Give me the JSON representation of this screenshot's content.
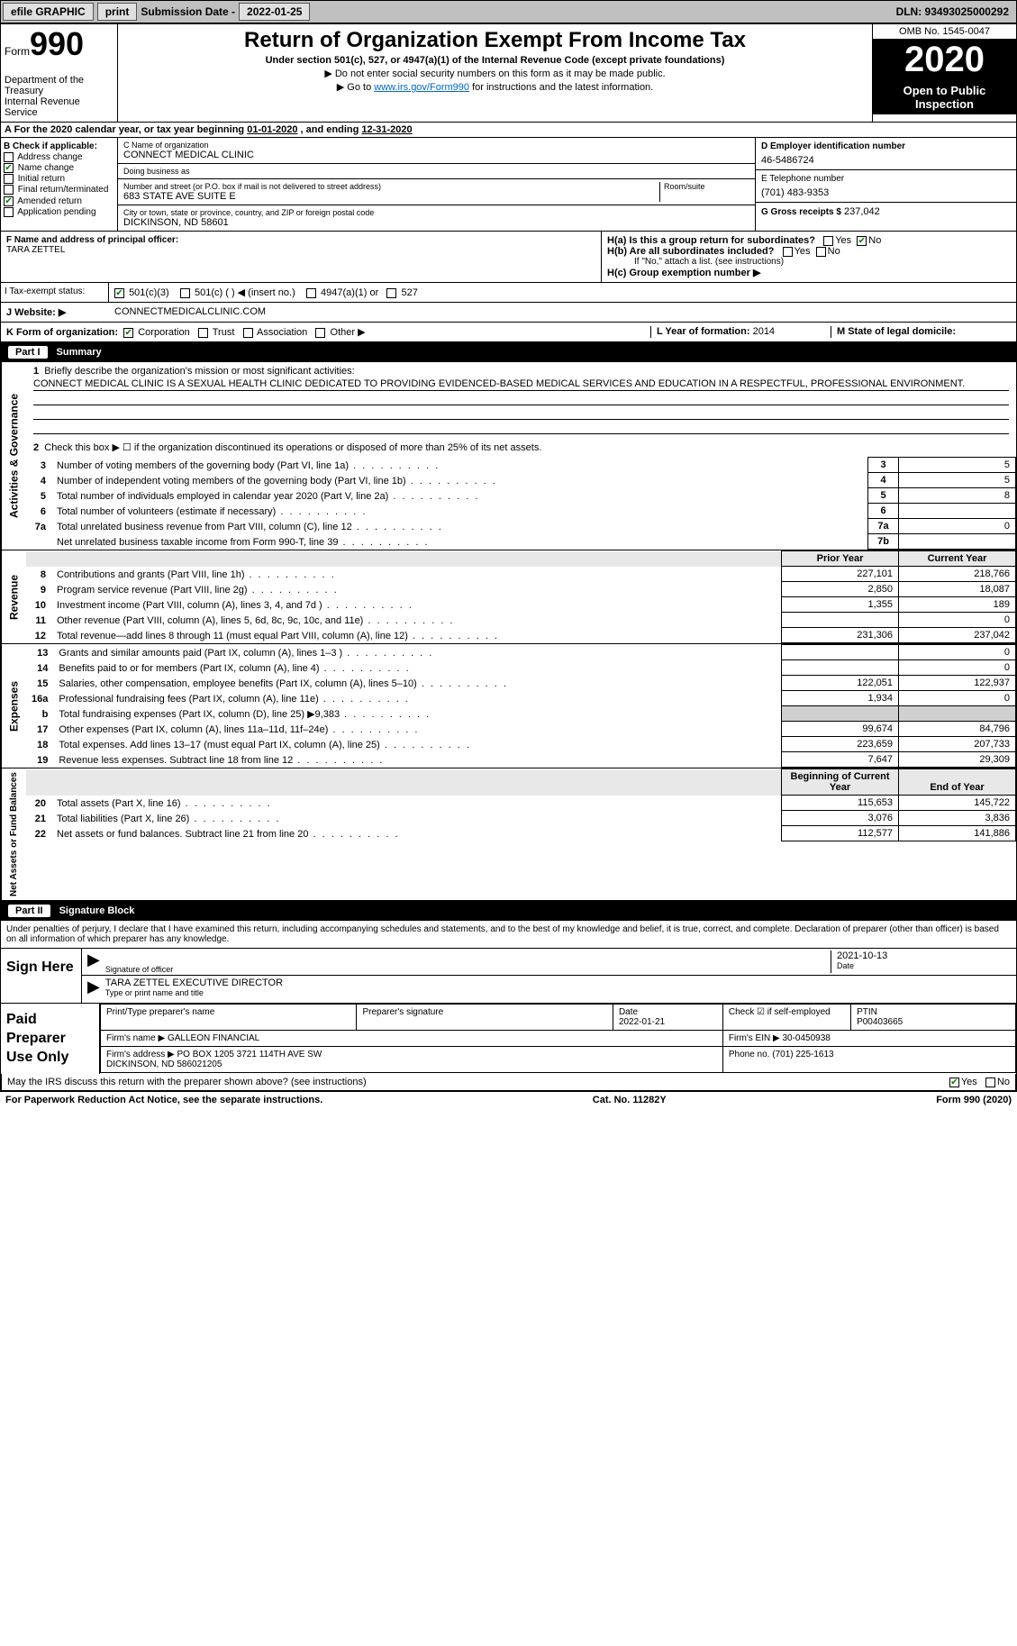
{
  "colors": {
    "link": "#0066cc",
    "checkbox_checked": "#008000",
    "shade": "#d0d0d0",
    "header_bg": "#000000",
    "header_fg": "#ffffff",
    "top_bar_bg": "#c0c0c0"
  },
  "top_bar": {
    "efile": "efile GRAPHIC",
    "print": "print",
    "sub_label": "Submission Date - ",
    "sub_date": "2022-01-25",
    "dln": "DLN: 93493025000292"
  },
  "header": {
    "form_word": "Form",
    "form_num": "990",
    "dept": "Department of the Treasury\nInternal Revenue Service",
    "title": "Return of Organization Exempt From Income Tax",
    "subtitle": "Under section 501(c), 527, or 4947(a)(1) of the Internal Revenue Code (except private foundations)",
    "note1": "▶ Do not enter social security numbers on this form as it may be made public.",
    "note2a": "▶ Go to ",
    "note2_link": "www.irs.gov/Form990",
    "note2b": " for instructions and the latest information.",
    "omb": "OMB No. 1545-0047",
    "year": "2020",
    "open": "Open to Public Inspection"
  },
  "period": {
    "label_a": "A For the 2020 calendar year, or tax year beginning ",
    "begin": "01-01-2020",
    "mid": " , and ending ",
    "end": "12-31-2020"
  },
  "section_b": {
    "header": "B Check if applicable:",
    "items": [
      {
        "label": "Address change",
        "checked": false
      },
      {
        "label": "Name change",
        "checked": true
      },
      {
        "label": "Initial return",
        "checked": false
      },
      {
        "label": "Final return/terminated",
        "checked": false
      },
      {
        "label": "Amended return",
        "checked": true
      },
      {
        "label": "Application pending",
        "checked": false,
        "prefix": true
      }
    ]
  },
  "section_c": {
    "name_lbl": "C Name of organization",
    "name": "CONNECT MEDICAL CLINIC",
    "dba_lbl": "Doing business as",
    "dba": "",
    "addr_lbl": "Number and street (or P.O. box if mail is not delivered to street address)",
    "room_lbl": "Room/suite",
    "addr": "683 STATE AVE SUITE E",
    "city_lbl": "City or town, state or province, country, and ZIP or foreign postal code",
    "city": "DICKINSON, ND  58601"
  },
  "section_d": {
    "lbl": "D Employer identification number",
    "val": "46-5486724"
  },
  "section_e": {
    "lbl": "E Telephone number",
    "val": "(701) 483-9353"
  },
  "section_g": {
    "lbl": "G Gross receipts $",
    "val": "237,042"
  },
  "section_f": {
    "lbl": "F Name and address of principal officer:",
    "val": "TARA ZETTEL"
  },
  "section_h": {
    "a": "H(a)  Is this a group return for subordinates?",
    "a_yes": "Yes",
    "a_no": "No",
    "a_checked": "No",
    "b": "H(b)  Are all subordinates included?",
    "b_yes": "Yes",
    "b_no": "No",
    "b_note": "If \"No,\" attach a list. (see instructions)",
    "c": "H(c)  Group exemption number ▶"
  },
  "section_i": {
    "lbl": "I    Tax-exempt status:",
    "opts": [
      {
        "label": "501(c)(3)",
        "checked": true
      },
      {
        "label": "501(c) (  ) ◀ (insert no.)",
        "checked": false
      },
      {
        "label": "4947(a)(1) or",
        "checked": false
      },
      {
        "label": "527",
        "checked": false
      }
    ]
  },
  "section_j": {
    "lbl": "J    Website: ▶",
    "val": "CONNECTMEDICALCLINIC.COM"
  },
  "section_k": {
    "lbl": "K Form of organization:",
    "opts": [
      {
        "label": "Corporation",
        "checked": true
      },
      {
        "label": "Trust",
        "checked": false
      },
      {
        "label": "Association",
        "checked": false
      },
      {
        "label": "Other ▶",
        "checked": false
      }
    ]
  },
  "section_l": {
    "lbl": "L Year of formation:",
    "val": "2014"
  },
  "section_m": {
    "lbl": "M State of legal domicile:",
    "val": ""
  },
  "part1": {
    "hdr_part": "Part I",
    "hdr_title": "Summary",
    "q1": "Briefly describe the organization's mission or most significant activities:",
    "mission": "CONNECT MEDICAL CLINIC IS A SEXUAL HEALTH CLINIC DEDICATED TO PROVIDING EVIDENCED-BASED MEDICAL SERVICES AND EDUCATION IN A RESPECTFUL, PROFESSIONAL ENVIRONMENT.",
    "q2": "Check this box ▶ ☐  if the organization discontinued its operations or disposed of more than 25% of its net assets.",
    "rows_gov": [
      {
        "n": "3",
        "t": "Number of voting members of the governing body (Part VI, line 1a)",
        "box": "3",
        "v": "5"
      },
      {
        "n": "4",
        "t": "Number of independent voting members of the governing body (Part VI, line 1b)",
        "box": "4",
        "v": "5"
      },
      {
        "n": "5",
        "t": "Total number of individuals employed in calendar year 2020 (Part V, line 2a)",
        "box": "5",
        "v": "8"
      },
      {
        "n": "6",
        "t": "Total number of volunteers (estimate if necessary)",
        "box": "6",
        "v": ""
      },
      {
        "n": "7a",
        "t": "Total unrelated business revenue from Part VIII, column (C), line 12",
        "box": "7a",
        "v": "0"
      },
      {
        "n": "",
        "t": "Net unrelated business taxable income from Form 990-T, line 39",
        "box": "7b",
        "v": ""
      }
    ],
    "col_prior": "Prior Year",
    "col_current": "Current Year",
    "rows_rev": [
      {
        "n": "8",
        "t": "Contributions and grants (Part VIII, line 1h)",
        "p": "227,101",
        "c": "218,766"
      },
      {
        "n": "9",
        "t": "Program service revenue (Part VIII, line 2g)",
        "p": "2,850",
        "c": "18,087"
      },
      {
        "n": "10",
        "t": "Investment income (Part VIII, column (A), lines 3, 4, and 7d )",
        "p": "1,355",
        "c": "189"
      },
      {
        "n": "11",
        "t": "Other revenue (Part VIII, column (A), lines 5, 6d, 8c, 9c, 10c, and 11e)",
        "p": "",
        "c": "0"
      },
      {
        "n": "12",
        "t": "Total revenue—add lines 8 through 11 (must equal Part VIII, column (A), line 12)",
        "p": "231,306",
        "c": "237,042"
      }
    ],
    "rows_exp": [
      {
        "n": "13",
        "t": "Grants and similar amounts paid (Part IX, column (A), lines 1–3 )",
        "p": "",
        "c": "0"
      },
      {
        "n": "14",
        "t": "Benefits paid to or for members (Part IX, column (A), line 4)",
        "p": "",
        "c": "0"
      },
      {
        "n": "15",
        "t": "Salaries, other compensation, employee benefits (Part IX, column (A), lines 5–10)",
        "p": "122,051",
        "c": "122,937"
      },
      {
        "n": "16a",
        "t": "Professional fundraising fees (Part IX, column (A), line 11e)",
        "p": "1,934",
        "c": "0"
      },
      {
        "n": "b",
        "t": "Total fundraising expenses (Part IX, column (D), line 25) ▶9,383",
        "p": "shade",
        "c": "shade"
      },
      {
        "n": "17",
        "t": "Other expenses (Part IX, column (A), lines 11a–11d, 11f–24e)",
        "p": "99,674",
        "c": "84,796"
      },
      {
        "n": "18",
        "t": "Total expenses. Add lines 13–17 (must equal Part IX, column (A), line 25)",
        "p": "223,659",
        "c": "207,733"
      },
      {
        "n": "19",
        "t": "Revenue less expenses. Subtract line 18 from line 12",
        "p": "7,647",
        "c": "29,309"
      }
    ],
    "col_begin": "Beginning of Current Year",
    "col_end": "End of Year",
    "rows_net": [
      {
        "n": "20",
        "t": "Total assets (Part X, line 16)",
        "p": "115,653",
        "c": "145,722"
      },
      {
        "n": "21",
        "t": "Total liabilities (Part X, line 26)",
        "p": "3,076",
        "c": "3,836"
      },
      {
        "n": "22",
        "t": "Net assets or fund balances. Subtract line 21 from line 20",
        "p": "112,577",
        "c": "141,886"
      }
    ],
    "vtab_gov": "Activities & Governance",
    "vtab_rev": "Revenue",
    "vtab_exp": "Expenses",
    "vtab_net": "Net Assets or Fund Balances"
  },
  "part2": {
    "hdr_part": "Part II",
    "hdr_title": "Signature Block",
    "disclaimer": "Under penalties of perjury, I declare that I have examined this return, including accompanying schedules and statements, and to the best of my knowledge and belief, it is true, correct, and complete. Declaration of preparer (other than officer) is based on all information of which preparer has any knowledge.",
    "sign_here": "Sign Here",
    "sig_lbl": "Signature of officer",
    "date_lbl": "Date",
    "sig_date": "2021-10-13",
    "name_lbl": "Type or print name and title",
    "name_val": "TARA ZETTEL  EXECUTIVE DIRECTOR",
    "paid_hdr": "Paid Preparer Use Only",
    "prep_name_lbl": "Print/Type preparer's name",
    "prep_sig_lbl": "Preparer's signature",
    "prep_date_lbl": "Date",
    "prep_date": "2022-01-21",
    "self_emp": "Check ☑ if self-employed",
    "ptin_lbl": "PTIN",
    "ptin": "P00403665",
    "firm_name_lbl": "Firm's name    ▶",
    "firm_name": "GALLEON FINANCIAL",
    "firm_ein_lbl": "Firm's EIN ▶",
    "firm_ein": "30-0450938",
    "firm_addr_lbl": "Firm's address ▶",
    "firm_addr": "PO BOX 1205 3721 114TH AVE SW\nDICKINSON, ND   586021205",
    "phone_lbl": "Phone no.",
    "phone": "(701) 225-1613",
    "discuss": "May the IRS discuss this return with the preparer shown above? (see instructions)",
    "discuss_yes": "Yes",
    "discuss_no": "No",
    "discuss_checked": "Yes"
  },
  "footer": {
    "pra": "For Paperwork Reduction Act Notice, see the separate instructions.",
    "cat": "Cat. No. 11282Y",
    "form": "Form 990 (2020)"
  }
}
